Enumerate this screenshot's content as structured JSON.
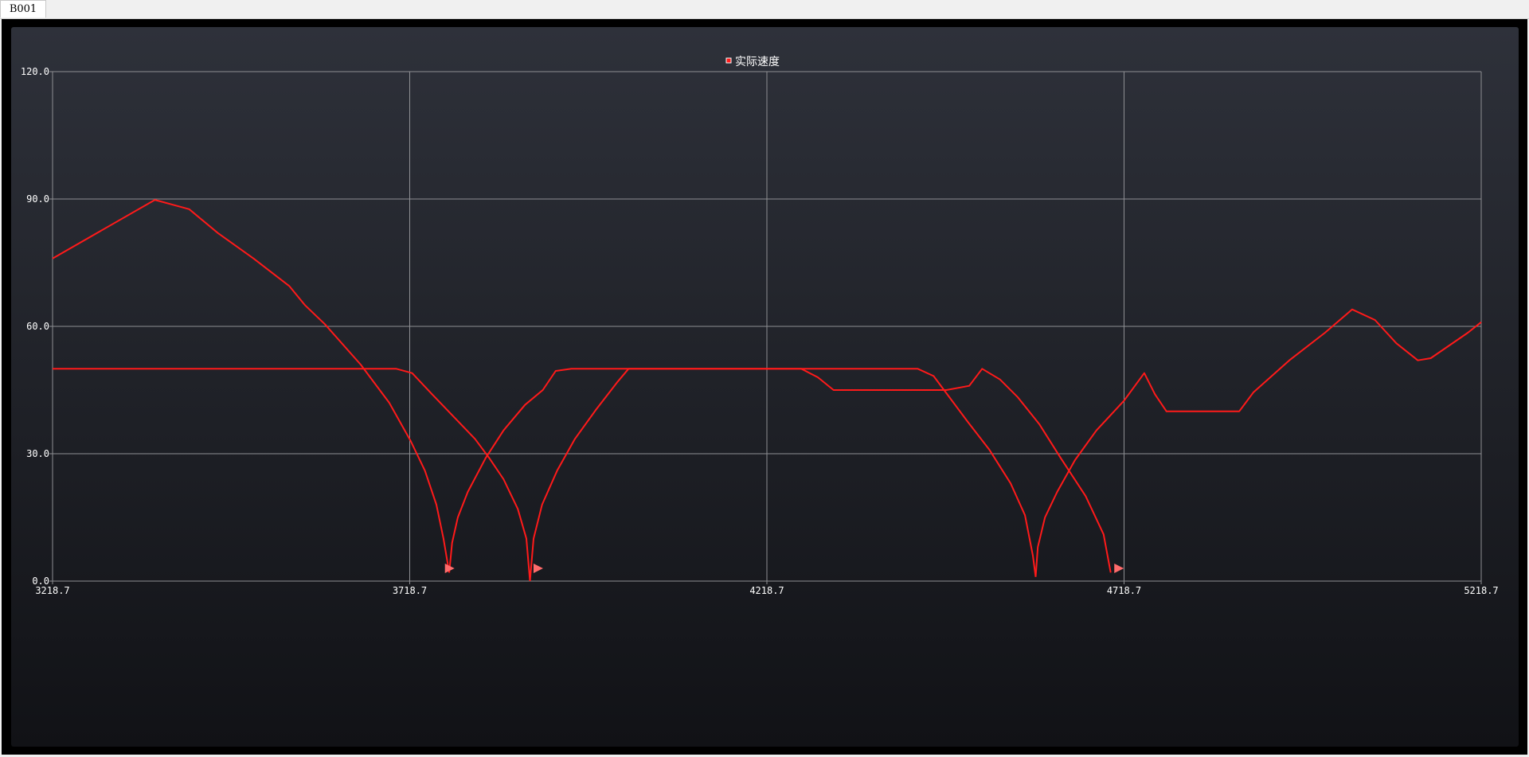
{
  "tab": {
    "label": "B001"
  },
  "colors": {
    "series": "#ff1a1a",
    "grid": "#8e8f93",
    "flag": "#ff6b6b"
  },
  "chart_data": {
    "type": "line",
    "legend": {
      "label": "实际速度",
      "placement": "top-center"
    },
    "xlim": [
      3218.7,
      5218.7
    ],
    "ylim": [
      0,
      120
    ],
    "xticks": [
      "3218.7",
      "3718.7",
      "4218.7",
      "4718.7",
      "5218.7"
    ],
    "yticks": [
      "0.0",
      "30.0",
      "60.0",
      "90.0",
      "120.0"
    ],
    "grid": true,
    "series": [
      {
        "name": "实际速度",
        "points": [
          [
            3218.7,
            76
          ],
          [
            3362,
            89.8
          ],
          [
            3410,
            87.6
          ],
          [
            3450,
            82
          ],
          [
            3500,
            76
          ],
          [
            3550,
            69.5
          ],
          [
            3572,
            65
          ],
          [
            3600,
            60.5
          ],
          [
            3650,
            51
          ],
          [
            3690,
            42
          ],
          [
            3720,
            33
          ],
          [
            3740,
            26
          ],
          [
            3756,
            18
          ],
          [
            3766,
            10
          ],
          [
            3774,
            2
          ]
        ]
      },
      {
        "name": "实际速度",
        "points": [
          [
            3774,
            2
          ],
          [
            3778,
            9
          ],
          [
            3786,
            15
          ],
          [
            3800,
            21
          ],
          [
            3825,
            29
          ],
          [
            3850,
            35.5
          ],
          [
            3880,
            41.5
          ],
          [
            3905,
            45
          ],
          [
            3923,
            49.5
          ],
          [
            3945,
            50
          ],
          [
            4000,
            50
          ],
          [
            4267,
            50
          ],
          [
            4290,
            48
          ],
          [
            4312,
            45
          ],
          [
            4470,
            45
          ],
          [
            4502,
            46
          ],
          [
            4520,
            50
          ],
          [
            4545,
            47.5
          ],
          [
            4570,
            43.3
          ],
          [
            4600,
            37
          ],
          [
            4630,
            29
          ],
          [
            4665,
            20
          ],
          [
            4690,
            11
          ],
          [
            4700,
            2
          ]
        ]
      },
      {
        "name": "实际速度",
        "points": [
          [
            3218.7,
            50
          ],
          [
            3700,
            50
          ],
          [
            3722,
            49
          ],
          [
            3750,
            44
          ],
          [
            3790,
            37
          ],
          [
            3810,
            33.5
          ],
          [
            3830,
            29
          ],
          [
            3850,
            24
          ],
          [
            3870,
            17
          ],
          [
            3882,
            10
          ],
          [
            3887,
            0
          ]
        ]
      },
      {
        "name": "实际速度",
        "points": [
          [
            3887,
            0
          ],
          [
            3892,
            10
          ],
          [
            3904,
            18
          ],
          [
            3925,
            26
          ],
          [
            3950,
            33.5
          ],
          [
            3980,
            40.5
          ],
          [
            4010,
            47
          ],
          [
            4025,
            50
          ],
          [
            4267,
            50
          ],
          [
            4430,
            50
          ],
          [
            4452,
            48.3
          ],
          [
            4480,
            42
          ],
          [
            4500,
            37.5
          ],
          [
            4530,
            31
          ],
          [
            4560,
            23
          ],
          [
            4580,
            15.5
          ],
          [
            4591,
            6
          ],
          [
            4595,
            1
          ]
        ]
      },
      {
        "name": "实际速度",
        "points": [
          [
            4595,
            1
          ],
          [
            4598,
            8
          ],
          [
            4608,
            15
          ],
          [
            4625,
            21
          ],
          [
            4650,
            28.5
          ],
          [
            4680,
            35.5
          ],
          [
            4718.7,
            42.5
          ],
          [
            4747,
            49
          ],
          [
            4762,
            44
          ],
          [
            4778,
            40
          ],
          [
            4880,
            40
          ],
          [
            4900,
            44.5
          ],
          [
            4950,
            52
          ],
          [
            5000,
            58.5
          ],
          [
            5038,
            64
          ],
          [
            5070,
            61.5
          ],
          [
            5100,
            56
          ],
          [
            5130,
            52
          ],
          [
            5148,
            52.5
          ],
          [
            5200,
            58.5
          ],
          [
            5218.7,
            61
          ]
        ]
      }
    ],
    "flags": [
      3768,
      3892,
      4705
    ]
  }
}
